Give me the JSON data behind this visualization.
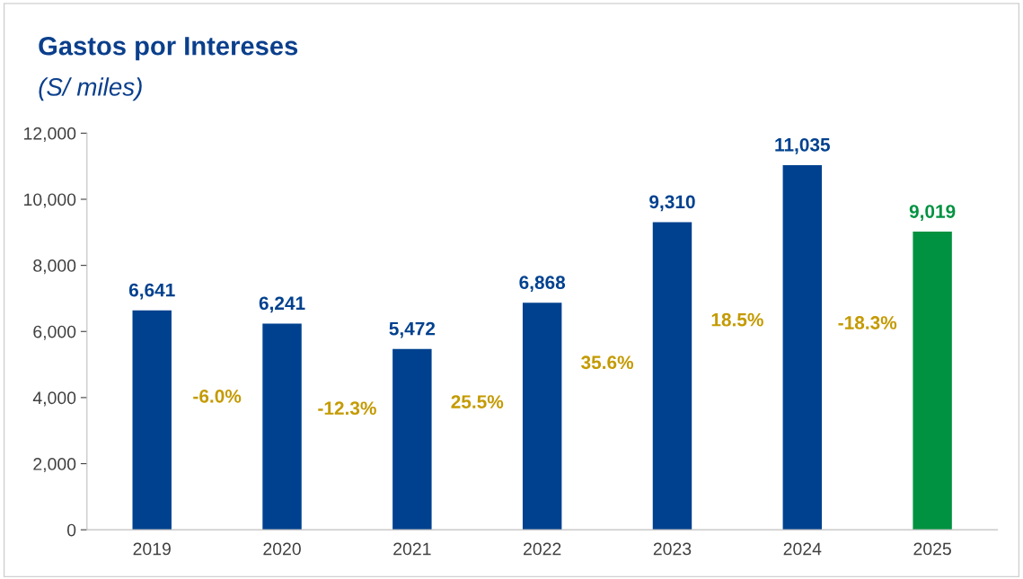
{
  "chart_data": {
    "type": "bar",
    "title": "Gastos por Intereses",
    "subtitle": "(S/ miles)",
    "categories": [
      "2019",
      "2020",
      "2021",
      "2022",
      "2023",
      "2024",
      "2025"
    ],
    "values": [
      6641,
      6241,
      5472,
      6868,
      9310,
      11035,
      9019
    ],
    "colors": [
      "#00418f",
      "#00418f",
      "#00418f",
      "#00418f",
      "#00418f",
      "#00418f",
      "#009240"
    ],
    "value_labels": [
      "6,641",
      "6,241",
      "5,472",
      "6,868",
      "9,310",
      "11,035",
      "9,019"
    ],
    "ylim": [
      0,
      12000
    ],
    "yticks": [
      {
        "value": 0,
        "label": "0"
      },
      {
        "value": 2000,
        "label": "2,000"
      },
      {
        "value": 4000,
        "label": "4,000"
      },
      {
        "value": 6000,
        "label": "6,000"
      },
      {
        "value": 8000,
        "label": "8,000"
      },
      {
        "value": 10000,
        "label": "10,000"
      },
      {
        "value": 12000,
        "label": "12,000"
      }
    ],
    "annotations": [
      "-6.0%",
      "-12.3%",
      "25.5%",
      "35.6%",
      "18.5%",
      "-18.3%"
    ],
    "grid": false,
    "legend": false
  }
}
